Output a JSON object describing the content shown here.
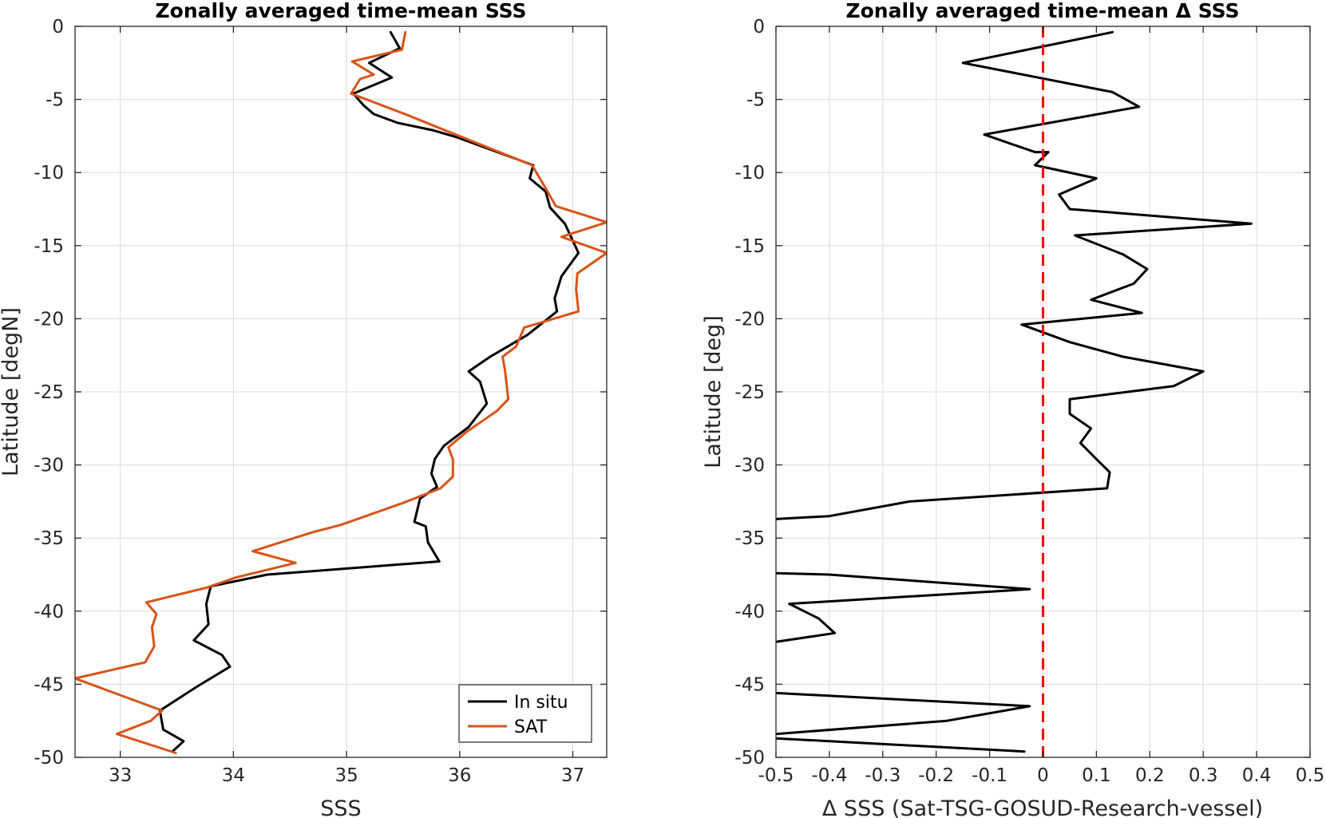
{
  "chart_data": [
    {
      "type": "line",
      "title": "Zonally averaged time-mean SSS",
      "xlabel": "SSS",
      "ylabel": "Latitude [degN]",
      "xlim": [
        32.6,
        37.3
      ],
      "ylim": [
        -50,
        0
      ],
      "xticks": [
        33,
        34,
        35,
        36,
        37
      ],
      "yticks": [
        0,
        -5,
        -10,
        -15,
        -20,
        -25,
        -30,
        -35,
        -40,
        -45,
        -50
      ],
      "grid": true,
      "legend_position": "bottom-right",
      "series": [
        {
          "name": "In situ",
          "color": "#000000",
          "points": [
            [
              35.39,
              -0.4
            ],
            [
              35.47,
              -1.5
            ],
            [
              35.2,
              -2.5
            ],
            [
              35.4,
              -3.5
            ],
            [
              35.06,
              -4.6
            ],
            [
              35.15,
              -5.4
            ],
            [
              35.24,
              -6.0
            ],
            [
              35.45,
              -6.6
            ],
            [
              35.76,
              -7.1
            ],
            [
              35.98,
              -7.6
            ],
            [
              36.65,
              -9.5
            ],
            [
              36.62,
              -10.4
            ],
            [
              36.76,
              -11.3
            ],
            [
              36.8,
              -12.4
            ],
            [
              36.93,
              -13.5
            ],
            [
              37.05,
              -15.5
            ],
            [
              36.9,
              -17.1
            ],
            [
              36.84,
              -18.6
            ],
            [
              36.86,
              -19.5
            ],
            [
              36.6,
              -21.1
            ],
            [
              36.27,
              -22.6
            ],
            [
              36.08,
              -23.6
            ],
            [
              36.18,
              -24.3
            ],
            [
              36.24,
              -25.8
            ],
            [
              36.08,
              -27.4
            ],
            [
              35.86,
              -28.7
            ],
            [
              35.78,
              -29.6
            ],
            [
              35.75,
              -30.6
            ],
            [
              35.8,
              -31.5
            ],
            [
              35.65,
              -32.3
            ],
            [
              35.6,
              -33.9
            ],
            [
              35.7,
              -34.2
            ],
            [
              35.72,
              -35.3
            ],
            [
              35.82,
              -36.6
            ],
            [
              34.3,
              -37.5
            ],
            [
              33.8,
              -38.3
            ],
            [
              33.76,
              -39.5
            ],
            [
              33.78,
              -40.9
            ],
            [
              33.65,
              -42.0
            ],
            [
              33.9,
              -43.0
            ],
            [
              33.97,
              -43.8
            ],
            [
              33.67,
              -45.2
            ],
            [
              33.35,
              -46.8
            ],
            [
              33.38,
              -48.1
            ],
            [
              33.56,
              -48.9
            ],
            [
              33.46,
              -49.6
            ]
          ]
        },
        {
          "name": "SAT",
          "color": "#D95319",
          "points": [
            [
              35.52,
              -0.4
            ],
            [
              35.49,
              -1.6
            ],
            [
              35.05,
              -2.4
            ],
            [
              35.24,
              -3.3
            ],
            [
              35.12,
              -3.6
            ],
            [
              35.04,
              -4.6
            ],
            [
              35.21,
              -5.1
            ],
            [
              35.55,
              -6.1
            ],
            [
              35.93,
              -7.3
            ],
            [
              36.64,
              -9.5
            ],
            [
              36.77,
              -11.2
            ],
            [
              36.85,
              -12.3
            ],
            [
              37.3,
              -13.4
            ],
            [
              36.9,
              -14.4
            ],
            [
              37.3,
              -15.5
            ],
            [
              37.04,
              -16.9
            ],
            [
              37.03,
              -18.0
            ],
            [
              37.05,
              -19.5
            ],
            [
              36.57,
              -20.6
            ],
            [
              36.5,
              -21.9
            ],
            [
              36.38,
              -22.6
            ],
            [
              36.4,
              -23.5
            ],
            [
              36.43,
              -25.5
            ],
            [
              36.33,
              -26.3
            ],
            [
              36.05,
              -27.8
            ],
            [
              35.9,
              -28.8
            ],
            [
              35.94,
              -29.6
            ],
            [
              35.94,
              -30.8
            ],
            [
              35.83,
              -31.6
            ],
            [
              35.5,
              -32.6
            ],
            [
              34.95,
              -34.1
            ],
            [
              34.7,
              -34.6
            ],
            [
              34.17,
              -35.9
            ],
            [
              34.55,
              -36.7
            ],
            [
              34.02,
              -37.7
            ],
            [
              33.76,
              -38.4
            ],
            [
              33.23,
              -39.4
            ],
            [
              33.32,
              -40.2
            ],
            [
              33.28,
              -41.1
            ],
            [
              33.3,
              -42.4
            ],
            [
              33.22,
              -43.5
            ],
            [
              32.6,
              -44.6
            ],
            [
              33.37,
              -46.8
            ],
            [
              33.27,
              -47.5
            ],
            [
              32.97,
              -48.4
            ],
            [
              33.49,
              -49.7
            ]
          ]
        }
      ]
    },
    {
      "type": "line",
      "title": "Zonally averaged time-mean Δ SSS",
      "xlabel": "Δ SSS (Sat-TSG-GOSUD-Research-vessel)",
      "ylabel": "Latitude [deg]",
      "xlim": [
        -0.5,
        0.5
      ],
      "ylim": [
        -50,
        0
      ],
      "xticks": [
        -0.5,
        -0.4,
        -0.3,
        -0.2,
        -0.1,
        0,
        0.1,
        0.2,
        0.3,
        0.4,
        0.5
      ],
      "yticks": [
        0,
        -5,
        -10,
        -15,
        -20,
        -25,
        -30,
        -35,
        -40,
        -45,
        -50
      ],
      "grid": true,
      "reference_line": {
        "x": 0,
        "color": "#FF0000",
        "style": "dashed"
      },
      "series": [
        {
          "name": "",
          "color": "#000000",
          "segments": [
            [
              [
                0.13,
                -0.4
              ],
              [
                -0.15,
                -2.5
              ],
              [
                0.13,
                -4.5
              ],
              [
                0.18,
                -5.5
              ],
              [
                -0.11,
                -7.4
              ],
              [
                -0.015,
                -8.6
              ],
              [
                0.01,
                -8.6
              ],
              [
                -0.015,
                -9.5
              ],
              [
                0.1,
                -10.4
              ],
              [
                0.03,
                -11.5
              ],
              [
                0.05,
                -12.5
              ],
              [
                0.39,
                -13.5
              ],
              [
                0.06,
                -14.3
              ],
              [
                0.15,
                -15.6
              ],
              [
                0.195,
                -16.6
              ],
              [
                0.17,
                -17.6
              ],
              [
                0.09,
                -18.7
              ],
              [
                0.185,
                -19.6
              ],
              [
                -0.04,
                -20.4
              ],
              [
                0.05,
                -21.6
              ],
              [
                0.15,
                -22.6
              ],
              [
                0.3,
                -23.6
              ],
              [
                0.245,
                -24.6
              ],
              [
                0.05,
                -25.5
              ],
              [
                0.05,
                -26.5
              ],
              [
                0.09,
                -27.5
              ],
              [
                0.07,
                -28.5
              ],
              [
                0.1,
                -29.6
              ],
              [
                0.125,
                -30.5
              ],
              [
                0.12,
                -31.6
              ],
              [
                -0.25,
                -32.5
              ],
              [
                -0.4,
                -33.5
              ],
              [
                -0.5,
                -33.7
              ]
            ],
            [
              [
                -0.5,
                -37.4
              ],
              [
                -0.4,
                -37.5
              ],
              [
                -0.025,
                -38.5
              ],
              [
                -0.475,
                -39.5
              ],
              [
                -0.42,
                -40.5
              ],
              [
                -0.39,
                -41.5
              ],
              [
                -0.5,
                -42.1
              ]
            ],
            [
              [
                -0.5,
                -45.6
              ],
              [
                -0.025,
                -46.5
              ],
              [
                -0.18,
                -47.5
              ],
              [
                -0.5,
                -48.4
              ]
            ],
            [
              [
                -0.5,
                -48.7
              ],
              [
                -0.035,
                -49.6
              ]
            ]
          ]
        }
      ]
    }
  ]
}
